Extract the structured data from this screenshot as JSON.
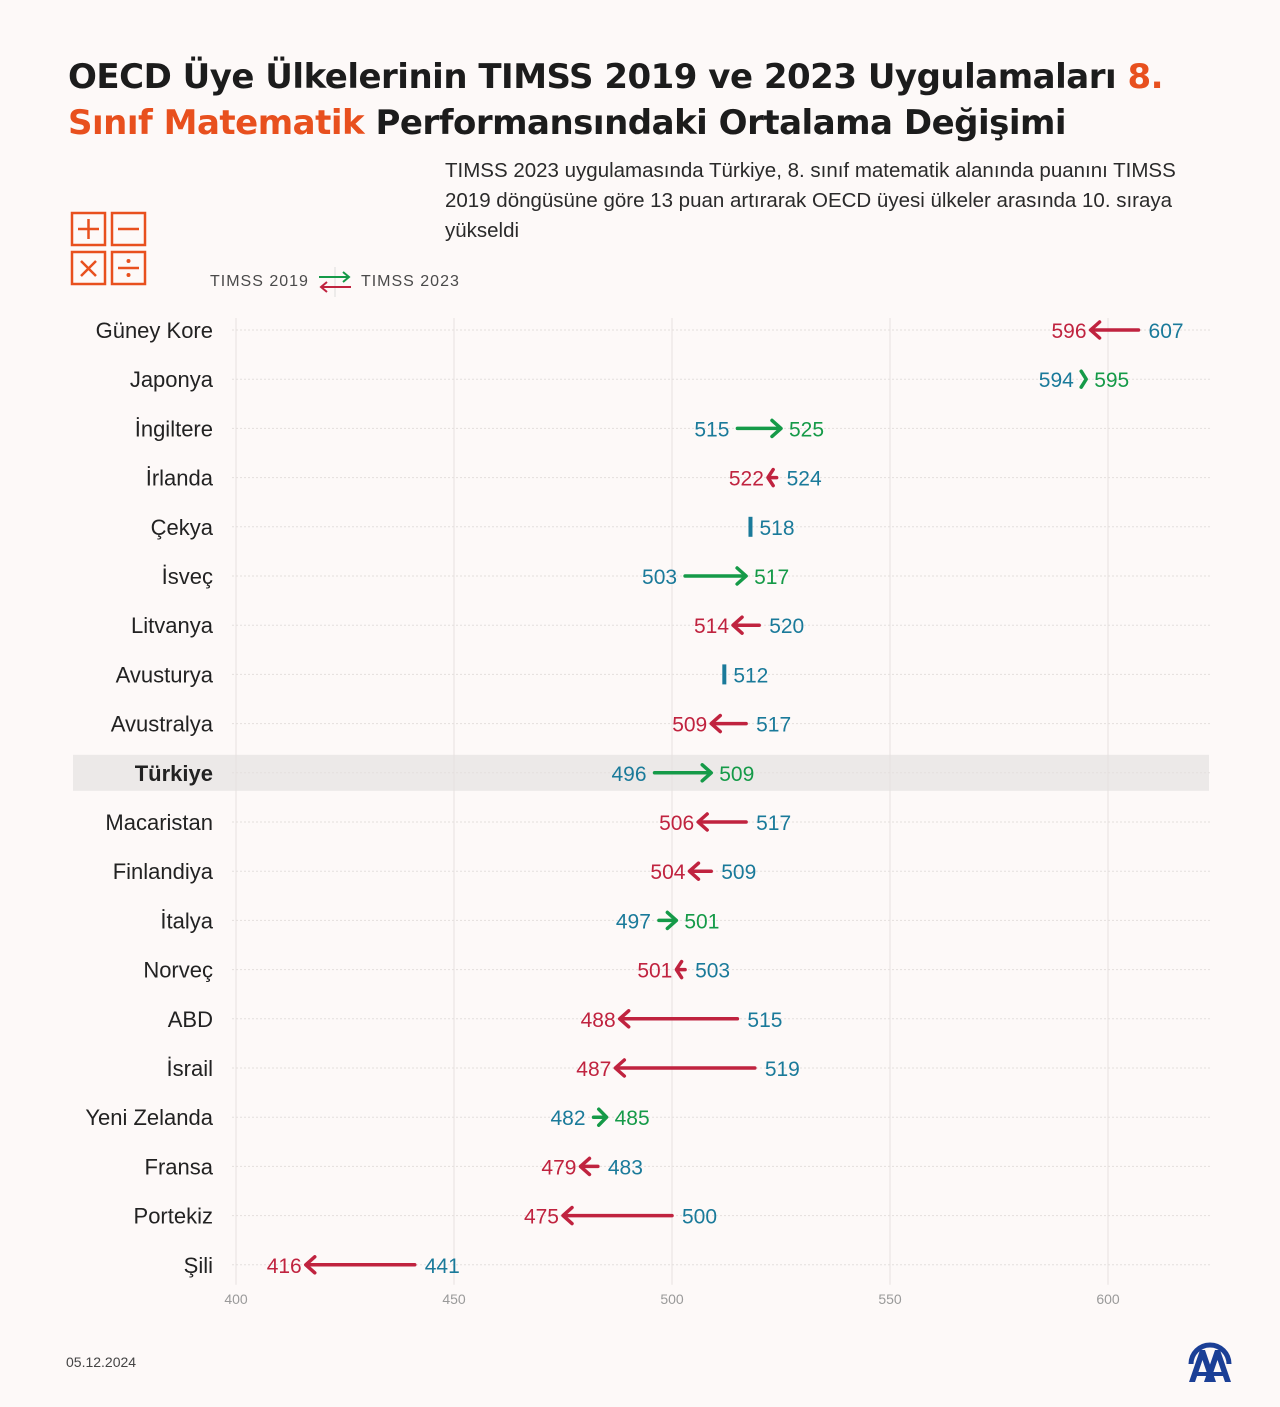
{
  "header": {
    "title_part1": "OECD Üye Ülkelerinin TIMSS 2019 ve 2023 Uygulamaları ",
    "title_highlight": "8. Sınıf Matematik",
    "title_part2": " Performansındaki Ortalama Değişimi",
    "subtitle": "TIMSS 2023 uygulamasında Türkiye, 8. sınıf matematik alanında puanını TIMSS 2019 döngüsüne göre 13 puan artırarak OECD üyesi ülkeler arasında 10. sıraya yükseldi",
    "icon": "math-operations-icon"
  },
  "legend": {
    "from_label": "TIMSS 2019",
    "to_label": "TIMSS 2023",
    "icon": "swap-arrows-icon"
  },
  "colors": {
    "score_2019": "#1a7a9a",
    "increase": "#159a48",
    "decrease": "#c0233f",
    "highlight_title": "#e8501e",
    "highlight_row": "#ece9e8",
    "logo": "#1b3f96"
  },
  "chart_data": {
    "type": "dumbbell-arrow",
    "title": "OECD Üye Ülkelerinin TIMSS 2019 ve 2023 Uygulamaları 8. Sınıf Matematik Performansındaki Ortalama Değişimi",
    "xlabel": "",
    "ylabel": "",
    "xlim": [
      400,
      625
    ],
    "xticks": [
      400,
      450,
      500,
      550,
      600
    ],
    "grid": true,
    "legend": "top-left",
    "highlight": "Türkiye",
    "series": [
      {
        "name": "TIMSS 2019"
      },
      {
        "name": "TIMSS 2023"
      }
    ],
    "rows": [
      {
        "country": "Güney Kore",
        "y2019": 607,
        "y2023": 596
      },
      {
        "country": "Japonya",
        "y2019": 594,
        "y2023": 595
      },
      {
        "country": "İngiltere",
        "y2019": 515,
        "y2023": 525
      },
      {
        "country": "İrlanda",
        "y2019": 524,
        "y2023": 522
      },
      {
        "country": "Çekya",
        "y2019": 518,
        "y2023": 518
      },
      {
        "country": "İsveç",
        "y2019": 503,
        "y2023": 517
      },
      {
        "country": "Litvanya",
        "y2019": 520,
        "y2023": 514
      },
      {
        "country": "Avusturya",
        "y2019": 512,
        "y2023": 512
      },
      {
        "country": "Avustralya",
        "y2019": 517,
        "y2023": 509
      },
      {
        "country": "Türkiye",
        "y2019": 496,
        "y2023": 509
      },
      {
        "country": "Macaristan",
        "y2019": 517,
        "y2023": 506
      },
      {
        "country": "Finlandiya",
        "y2019": 509,
        "y2023": 504
      },
      {
        "country": "İtalya",
        "y2019": 497,
        "y2023": 501
      },
      {
        "country": "Norveç",
        "y2019": 503,
        "y2023": 501
      },
      {
        "country": "ABD",
        "y2019": 515,
        "y2023": 488
      },
      {
        "country": "İsrail",
        "y2019": 519,
        "y2023": 487
      },
      {
        "country": "Yeni Zelanda",
        "y2019": 482,
        "y2023": 485
      },
      {
        "country": "Fransa",
        "y2019": 483,
        "y2023": 479
      },
      {
        "country": "Portekiz",
        "y2019": 500,
        "y2023": 475
      },
      {
        "country": "Şili",
        "y2019": 441,
        "y2023": 416
      }
    ]
  },
  "footer": {
    "date": "05.12.2024",
    "logo": "aa-logo-icon"
  }
}
